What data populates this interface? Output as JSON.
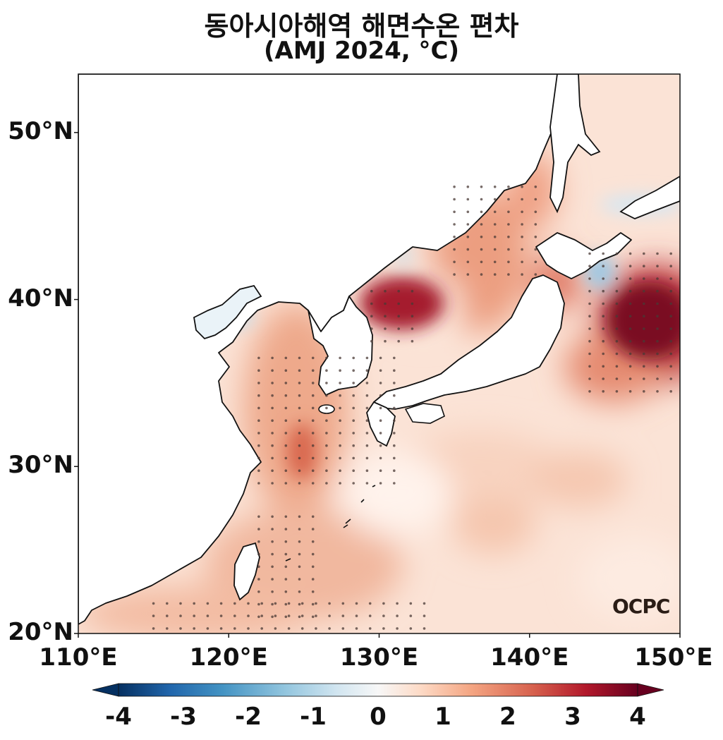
{
  "title": {
    "line1": "동아시아해역 해면수온 편차",
    "line2": "(AMJ 2024, °C)"
  },
  "map": {
    "lon_range": [
      110,
      150
    ],
    "lat_range": [
      20,
      53.5
    ],
    "lat_ticks": [
      {
        "value": 50,
        "label": "50°N"
      },
      {
        "value": 40,
        "label": "40°N"
      },
      {
        "value": 30,
        "label": "30°N"
      },
      {
        "value": 20,
        "label": "20°N"
      }
    ],
    "lon_ticks": [
      {
        "value": 110,
        "label": "110°E"
      },
      {
        "value": 120,
        "label": "120°E"
      },
      {
        "value": 130,
        "label": "130°E"
      },
      {
        "value": 140,
        "label": "140°E"
      },
      {
        "value": 150,
        "label": "150°E"
      }
    ],
    "logo": "OCPC"
  },
  "colorbar": {
    "range": [
      -4,
      4
    ],
    "extend": "both",
    "colormap": [
      "#053061",
      "#2166ac",
      "#4393c3",
      "#92c5de",
      "#d1e5f0",
      "#f7f7f7",
      "#fddbc7",
      "#f4a582",
      "#d6604d",
      "#b2182b",
      "#67001f"
    ],
    "ticks": [
      {
        "value": -4,
        "label": "-4"
      },
      {
        "value": -3,
        "label": "-3"
      },
      {
        "value": -2,
        "label": "-2"
      },
      {
        "value": -1,
        "label": "-1"
      },
      {
        "value": 0,
        "label": "0"
      },
      {
        "value": 1,
        "label": "1"
      },
      {
        "value": 2,
        "label": "2"
      },
      {
        "value": 3,
        "label": "3"
      },
      {
        "value": 4,
        "label": "4"
      }
    ]
  },
  "chart_data": {
    "type": "heatmap",
    "title": "동아시아해역 해면수온 편차 (AMJ 2024, °C)",
    "xlabel": "",
    "ylabel": "",
    "xlim": [
      110,
      150
    ],
    "ylim": [
      20,
      53.5
    ],
    "colorbar_range": [
      -4,
      4
    ],
    "anomaly_features": [
      {
        "lon": 131.5,
        "lat": 39.5,
        "value": 3.2
      },
      {
        "lon": 148.0,
        "lat": 38.5,
        "value": 3.8
      },
      {
        "lon": 141.8,
        "lat": 40.8,
        "value": 2.5
      },
      {
        "lon": 138.5,
        "lat": 43.5,
        "value": 1.8
      },
      {
        "lon": 141.5,
        "lat": 46.5,
        "value": 1.6
      },
      {
        "lon": 125.2,
        "lat": 30.5,
        "value": 1.8
      },
      {
        "lon": 124.5,
        "lat": 33.5,
        "value": 1.4
      },
      {
        "lon": 120.5,
        "lat": 21.5,
        "value": 1.4
      },
      {
        "lon": 143.5,
        "lat": 41.0,
        "value": -0.8
      },
      {
        "lon": 121.0,
        "lat": 38.5,
        "value": -0.6
      },
      {
        "lon": 148.5,
        "lat": 45.5,
        "value": -0.4
      }
    ],
    "significance_regions": [
      {
        "name": "east-sea-north",
        "lon": [
          135,
          141
        ],
        "lat": [
          41.5,
          47
        ]
      },
      {
        "name": "east-sea-south",
        "lon": [
          129.5,
          133
        ],
        "lat": [
          37.5,
          40.5
        ]
      },
      {
        "name": "east-china-sea",
        "lon": [
          122,
          131
        ],
        "lat": [
          29,
          36.5
        ]
      },
      {
        "name": "taiwan-east",
        "lon": [
          122,
          126
        ],
        "lat": [
          21,
          27
        ]
      },
      {
        "name": "south-china-coast",
        "lon": [
          115,
          133
        ],
        "lat": [
          20.3,
          22
        ]
      },
      {
        "name": "kuroshio-extension",
        "lon": [
          144,
          150
        ],
        "lat": [
          34.5,
          43
        ]
      }
    ]
  }
}
